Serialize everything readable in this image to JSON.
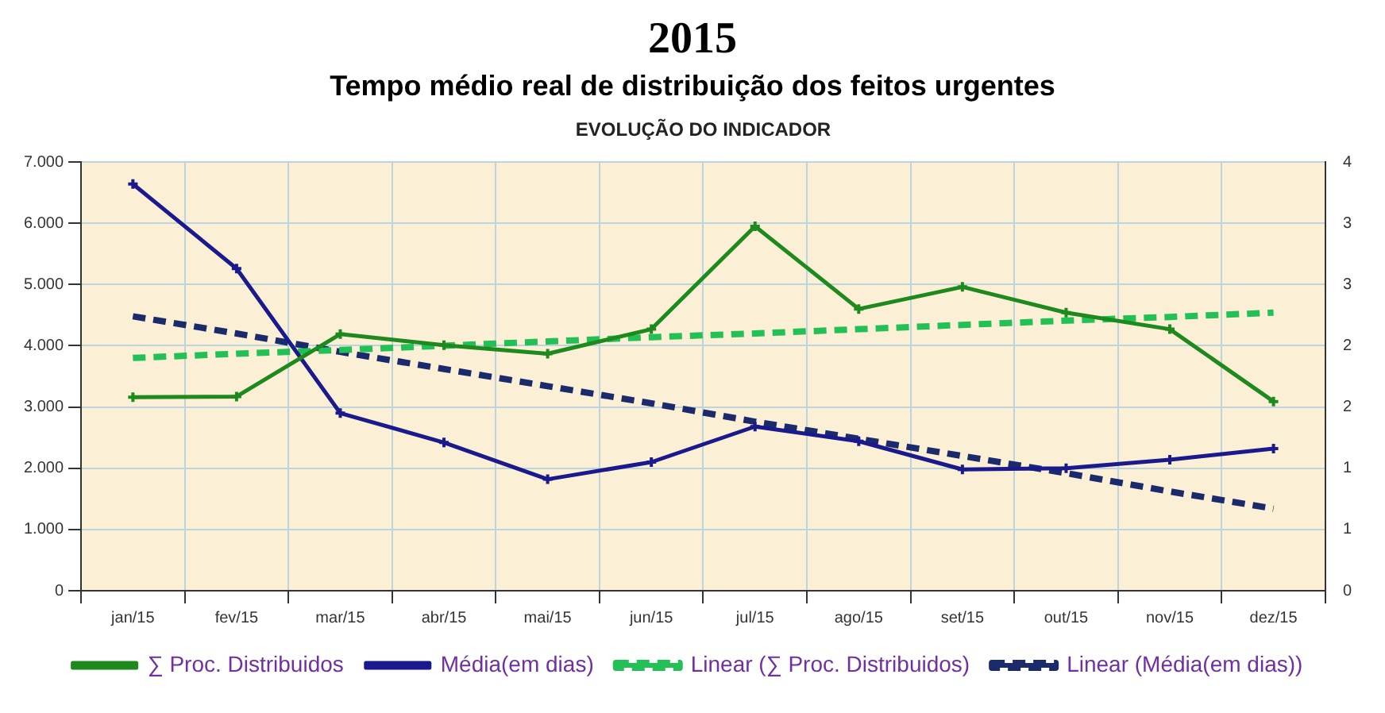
{
  "chart_data": {
    "type": "line",
    "title": "2015",
    "subtitle": "Tempo médio real de distribuição dos feitos urgentes",
    "annotations": [
      "EVOLUÇÃO DO INDICADOR"
    ],
    "categories": [
      "jan/15",
      "fev/15",
      "mar/15",
      "abr/15",
      "mai/15",
      "jun/15",
      "jul/15",
      "ago/15",
      "set/15",
      "out/15",
      "nov/15",
      "dez/15"
    ],
    "series": [
      {
        "name": "∑ Proc. Distribuidos",
        "color": "#1e8a1e",
        "values": [
          3160,
          3170,
          4190,
          4010,
          3870,
          4270,
          5950,
          4600,
          4960,
          4540,
          4270,
          3090
        ]
      },
      {
        "name": "Média(em dias)",
        "color": "#1a1a8c",
        "axis": "y2",
        "values": [
          3.82,
          3.13,
          1.95,
          1.71,
          1.41,
          1.55,
          1.84,
          1.72,
          1.49,
          1.5,
          1.57,
          1.66
        ]
      },
      {
        "name": "Linear (∑ Proc. Distribuidos)",
        "color": "#22c055",
        "line_style": "dashed",
        "marker": "none",
        "values": [
          3800,
          3870,
          3930,
          4000,
          4070,
          4140,
          4200,
          4270,
          4340,
          4410,
          4470,
          4540
        ]
      },
      {
        "name": "Linear (Média(em dias))",
        "color": "#1b2a6b",
        "axis": "y2",
        "line_style": "dashed",
        "marker": "none",
        "values": [
          2.74,
          2.6,
          2.45,
          2.31,
          2.17,
          2.03,
          1.88,
          1.74,
          1.6,
          1.46,
          1.31,
          1.17
        ]
      }
    ],
    "ylim": [
      0,
      7000
    ],
    "yticks": [
      {
        "value": 0,
        "label": "0"
      },
      {
        "value": 1000,
        "label": "1.000"
      },
      {
        "value": 2000,
        "label": "2.000"
      },
      {
        "value": 3000,
        "label": "3.000"
      },
      {
        "value": 4000,
        "label": "4.000"
      },
      {
        "value": 5000,
        "label": "5.000"
      },
      {
        "value": 6000,
        "label": "6.000"
      },
      {
        "value": 7000,
        "label": "7.000"
      }
    ],
    "y2lim": [
      0.5,
      4
    ],
    "y2ticks": [
      {
        "value": 0.5,
        "label": "0"
      },
      {
        "value": 1,
        "label": "1"
      },
      {
        "value": 1.5,
        "label": "1"
      },
      {
        "value": 2,
        "label": "2"
      },
      {
        "value": 2.5,
        "label": "2"
      },
      {
        "value": 3,
        "label": "3"
      },
      {
        "value": 3.5,
        "label": "3"
      },
      {
        "value": 4,
        "label": "4"
      }
    ],
    "grid": true,
    "legend": "bottom",
    "marker": "cross",
    "line_style": "solid"
  }
}
